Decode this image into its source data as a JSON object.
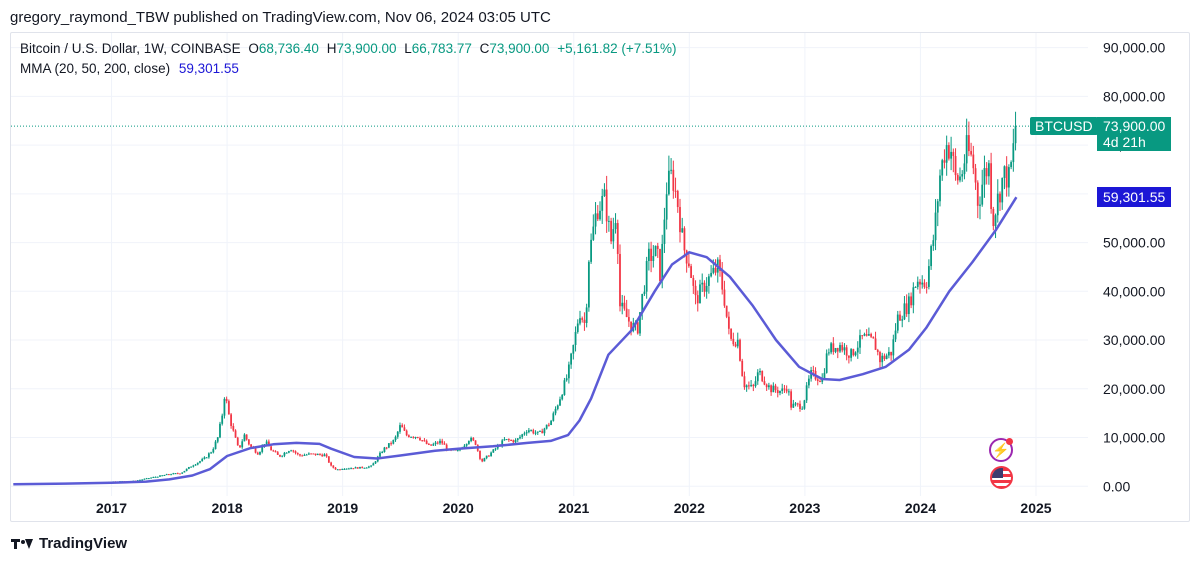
{
  "header": {
    "publisher_line": "gregory_raymond_TBW published on TradingView.com, Nov 06, 2024 03:05 UTC"
  },
  "legend": {
    "symbol": "Bitcoin / U.S. Dollar, 1W, COINBASE",
    "open_label": "O",
    "open_value": "68,736.40",
    "high_label": "H",
    "high_value": "73,900.00",
    "low_label": "L",
    "low_value": "66,783.77",
    "close_label": "C",
    "close_value": "73,900.00",
    "change": "+5,161.82 (+7.51%)",
    "ma_label": "MMA (20, 50, 200, close)",
    "ma_value": "59,301.55"
  },
  "price_tags": {
    "symbol": "BTCUSD",
    "last_price": "73,900.00",
    "countdown": "4d 21h",
    "ma_price": "59,301.55"
  },
  "footer": {
    "brand": "TradingView"
  },
  "icons": [
    "lightning-icon",
    "us-flag-icon",
    "tradingview-logo-icon"
  ],
  "colors": {
    "up": "#089981",
    "down": "#f23645",
    "ma": "#5b5bd6",
    "ma_tag": "#1c17d6",
    "grid": "#f0f3fa",
    "text": "#131722"
  },
  "chart_data": {
    "type": "candlestick",
    "title": "Bitcoin / U.S. Dollar, 1W, COINBASE",
    "interval": "1W",
    "x_tick_labels": [
      "2017",
      "2018",
      "2019",
      "2020",
      "2021",
      "2022",
      "2023",
      "2024",
      "2025"
    ],
    "y_tick_labels": [
      "0.00",
      "10,000.00",
      "20,000.00",
      "30,000.00",
      "40,000.00",
      "50,000.00",
      "60,000.00",
      "70,000.00",
      "80,000.00",
      "90,000.00"
    ],
    "y_ticks": [
      0,
      10000,
      20000,
      30000,
      40000,
      50000,
      60000,
      70000,
      80000,
      90000
    ],
    "ylim": [
      -2000,
      93000
    ],
    "xlim": [
      2016.13,
      2025.45
    ],
    "grid": true,
    "close_path": [
      [
        2016.15,
        430
      ],
      [
        2016.5,
        650
      ],
      [
        2016.9,
        750
      ],
      [
        2017.0,
        970
      ],
      [
        2017.2,
        1100
      ],
      [
        2017.35,
        1800
      ],
      [
        2017.5,
        2500
      ],
      [
        2017.6,
        2700
      ],
      [
        2017.7,
        4300
      ],
      [
        2017.8,
        5600
      ],
      [
        2017.87,
        7300
      ],
      [
        2017.92,
        10000
      ],
      [
        2017.96,
        15000
      ],
      [
        2017.98,
        19200
      ],
      [
        2018.02,
        14000
      ],
      [
        2018.05,
        11500
      ],
      [
        2018.1,
        7500
      ],
      [
        2018.15,
        10500
      ],
      [
        2018.2,
        8200
      ],
      [
        2018.27,
        6700
      ],
      [
        2018.33,
        9200
      ],
      [
        2018.38,
        7500
      ],
      [
        2018.45,
        6100
      ],
      [
        2018.55,
        7700
      ],
      [
        2018.62,
        6300
      ],
      [
        2018.72,
        6600
      ],
      [
        2018.85,
        6400
      ],
      [
        2018.9,
        4100
      ],
      [
        2018.95,
        3400
      ],
      [
        2019.0,
        3700
      ],
      [
        2019.15,
        3800
      ],
      [
        2019.25,
        4100
      ],
      [
        2019.35,
        7500
      ],
      [
        2019.45,
        9500
      ],
      [
        2019.5,
        12500
      ],
      [
        2019.55,
        10500
      ],
      [
        2019.65,
        10200
      ],
      [
        2019.75,
        8200
      ],
      [
        2019.85,
        9200
      ],
      [
        2019.92,
        7300
      ],
      [
        2020.0,
        7200
      ],
      [
        2020.1,
        9800
      ],
      [
        2020.15,
        8800
      ],
      [
        2020.2,
        5000
      ],
      [
        2020.3,
        7200
      ],
      [
        2020.4,
        9500
      ],
      [
        2020.5,
        9300
      ],
      [
        2020.6,
        11700
      ],
      [
        2020.7,
        10700
      ],
      [
        2020.8,
        13200
      ],
      [
        2020.87,
        17500
      ],
      [
        2020.95,
        23000
      ],
      [
        2021.0,
        29000
      ],
      [
        2021.05,
        36000
      ],
      [
        2021.1,
        33000
      ],
      [
        2021.13,
        47000
      ],
      [
        2021.2,
        57000
      ],
      [
        2021.27,
        59000
      ],
      [
        2021.32,
        50000
      ],
      [
        2021.37,
        57000
      ],
      [
        2021.4,
        37000
      ],
      [
        2021.45,
        35000
      ],
      [
        2021.5,
        33000
      ],
      [
        2021.55,
        32000
      ],
      [
        2021.6,
        40000
      ],
      [
        2021.65,
        47000
      ],
      [
        2021.72,
        48000
      ],
      [
        2021.75,
        43000
      ],
      [
        2021.8,
        61000
      ],
      [
        2021.85,
        64000
      ],
      [
        2021.9,
        58000
      ],
      [
        2021.95,
        49000
      ],
      [
        2022.0,
        46000
      ],
      [
        2022.05,
        38000
      ],
      [
        2022.15,
        42000
      ],
      [
        2022.25,
        45000
      ],
      [
        2022.3,
        39000
      ],
      [
        2022.35,
        30000
      ],
      [
        2022.42,
        30000
      ],
      [
        2022.47,
        21000
      ],
      [
        2022.55,
        20000
      ],
      [
        2022.6,
        23500
      ],
      [
        2022.7,
        20000
      ],
      [
        2022.8,
        19500
      ],
      [
        2022.85,
        20500
      ],
      [
        2022.88,
        16500
      ],
      [
        2022.98,
        16600
      ],
      [
        2023.05,
        23000
      ],
      [
        2023.15,
        22000
      ],
      [
        2023.2,
        28000
      ],
      [
        2023.3,
        29000
      ],
      [
        2023.4,
        27000
      ],
      [
        2023.5,
        30500
      ],
      [
        2023.6,
        29500
      ],
      [
        2023.65,
        26000
      ],
      [
        2023.75,
        27500
      ],
      [
        2023.8,
        34500
      ],
      [
        2023.9,
        37500
      ],
      [
        2023.97,
        42500
      ],
      [
        2024.05,
        41800
      ],
      [
        2024.12,
        52000
      ],
      [
        2024.17,
        64000
      ],
      [
        2024.22,
        70000
      ],
      [
        2024.27,
        69000
      ],
      [
        2024.3,
        63000
      ],
      [
        2024.35,
        63500
      ],
      [
        2024.4,
        69000
      ],
      [
        2024.45,
        67000
      ],
      [
        2024.5,
        58000
      ],
      [
        2024.55,
        64000
      ],
      [
        2024.6,
        66000
      ],
      [
        2024.62,
        54000
      ],
      [
        2024.67,
        59000
      ],
      [
        2024.72,
        64000
      ],
      [
        2024.77,
        63000
      ],
      [
        2024.8,
        68500
      ],
      [
        2024.83,
        73900
      ]
    ],
    "ma_path": [
      [
        2016.15,
        400
      ],
      [
        2016.6,
        550
      ],
      [
        2017.0,
        700
      ],
      [
        2017.3,
        950
      ],
      [
        2017.5,
        1400
      ],
      [
        2017.7,
        2200
      ],
      [
        2017.85,
        3500
      ],
      [
        2018.0,
        6200
      ],
      [
        2018.2,
        7800
      ],
      [
        2018.4,
        8600
      ],
      [
        2018.6,
        8900
      ],
      [
        2018.8,
        8700
      ],
      [
        2018.9,
        7700
      ],
      [
        2019.1,
        6000
      ],
      [
        2019.3,
        5700
      ],
      [
        2019.5,
        6300
      ],
      [
        2019.8,
        7300
      ],
      [
        2020.0,
        7700
      ],
      [
        2020.3,
        8200
      ],
      [
        2020.6,
        8900
      ],
      [
        2020.8,
        9300
      ],
      [
        2020.95,
        10500
      ],
      [
        2021.05,
        13500
      ],
      [
        2021.15,
        18000
      ],
      [
        2021.3,
        27000
      ],
      [
        2021.5,
        32000
      ],
      [
        2021.7,
        40000
      ],
      [
        2021.85,
        45500
      ],
      [
        2022.0,
        48000
      ],
      [
        2022.15,
        47000
      ],
      [
        2022.35,
        43000
      ],
      [
        2022.55,
        37000
      ],
      [
        2022.75,
        30000
      ],
      [
        2022.95,
        24500
      ],
      [
        2023.15,
        22000
      ],
      [
        2023.3,
        21800
      ],
      [
        2023.5,
        23000
      ],
      [
        2023.7,
        24500
      ],
      [
        2023.9,
        28000
      ],
      [
        2024.05,
        32500
      ],
      [
        2024.25,
        40000
      ],
      [
        2024.45,
        46000
      ],
      [
        2024.65,
        52500
      ],
      [
        2024.83,
        59301
      ]
    ],
    "ma_last": 59301.55,
    "last_close": 73900
  }
}
